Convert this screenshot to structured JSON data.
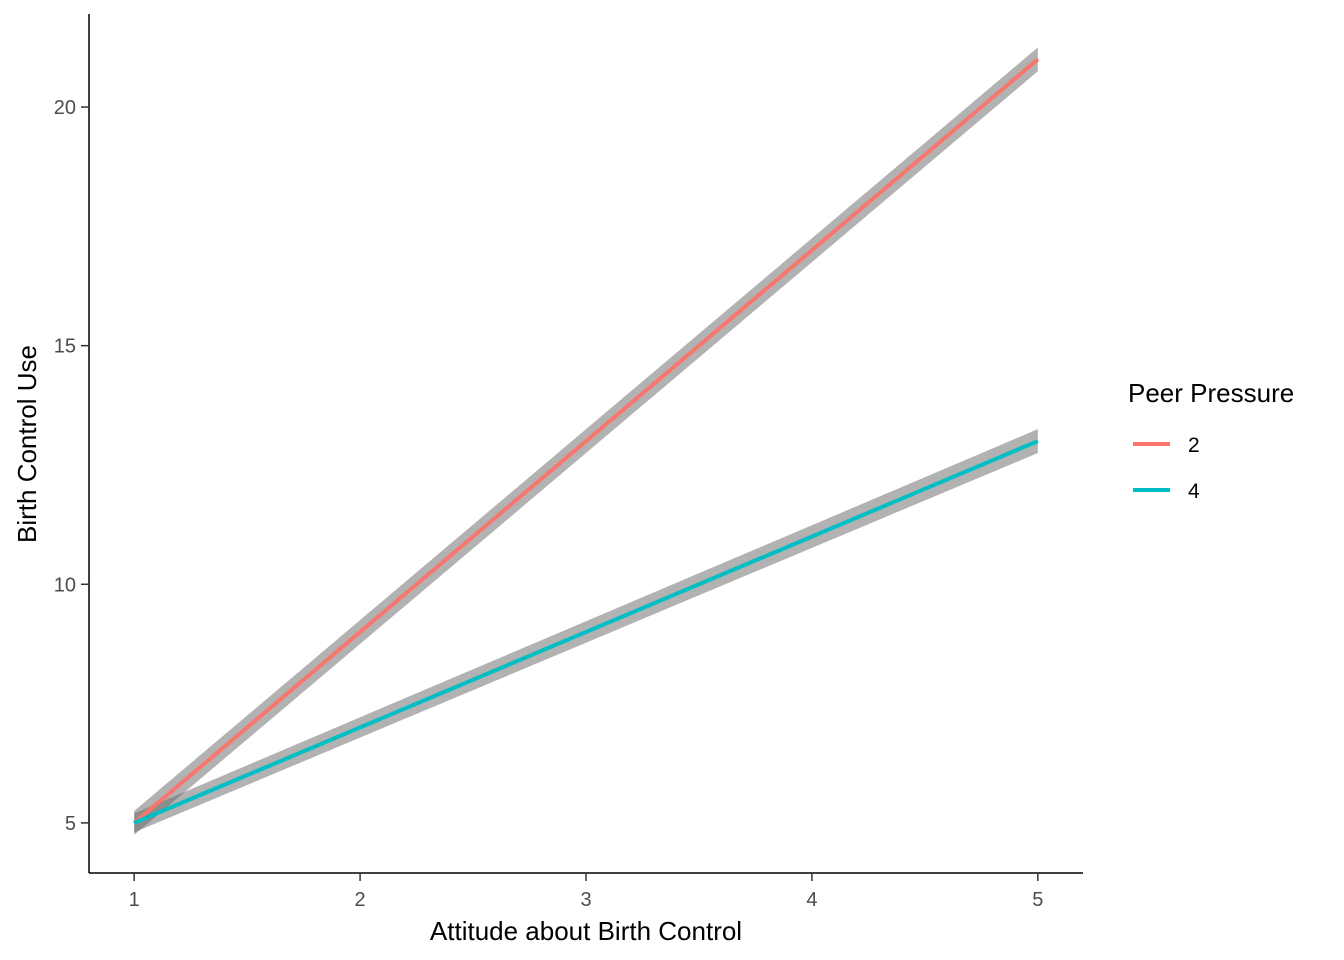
{
  "chart_data": {
    "type": "line",
    "xlabel": "Attitude about Birth Control",
    "ylabel": "Birth Control Use",
    "x": [
      1,
      5
    ],
    "xlim": [
      0.8,
      5.2
    ],
    "ylim": [
      3.95,
      21.95
    ],
    "xticks": [
      1,
      2,
      3,
      4,
      5
    ],
    "yticks": [
      5,
      10,
      15,
      20
    ],
    "xtick_labels": [
      "1",
      "2",
      "3",
      "4",
      "5"
    ],
    "ytick_labels": [
      "5",
      "10",
      "15",
      "20"
    ],
    "grid": false,
    "confidence_band": true,
    "legend": {
      "title": "Peer Pressure",
      "placement": "right"
    },
    "series": [
      {
        "name": "2",
        "color": "#F8766D",
        "values": [
          5.0,
          21.0
        ],
        "ci_lower": [
          4.75,
          20.75
        ],
        "ci_upper": [
          5.25,
          21.25
        ]
      },
      {
        "name": "4",
        "color": "#00BFC4",
        "values": [
          5.0,
          13.0
        ],
        "ci_lower": [
          4.8,
          12.75
        ],
        "ci_upper": [
          5.2,
          13.25
        ]
      }
    ]
  }
}
